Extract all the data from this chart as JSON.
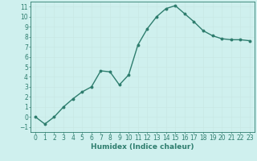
{
  "x": [
    0,
    1,
    2,
    3,
    4,
    5,
    6,
    7,
    8,
    9,
    10,
    11,
    12,
    13,
    14,
    15,
    16,
    17,
    18,
    19,
    20,
    21,
    22,
    23
  ],
  "y": [
    0,
    -0.7,
    0,
    1.0,
    1.8,
    2.5,
    3.0,
    4.6,
    4.5,
    3.2,
    4.2,
    7.2,
    8.8,
    10.0,
    10.8,
    11.1,
    10.3,
    9.5,
    8.6,
    8.1,
    7.8,
    7.7,
    7.7,
    7.6
  ],
  "line_color": "#2e7d6e",
  "marker": "o",
  "marker_size": 1.8,
  "bg_color": "#cff0ee",
  "grid_color": "#c8e8e4",
  "xlabel": "Humidex (Indice chaleur)",
  "xlim": [
    -0.5,
    23.5
  ],
  "ylim": [
    -1.5,
    11.5
  ],
  "xticks": [
    0,
    1,
    2,
    3,
    4,
    5,
    6,
    7,
    8,
    9,
    10,
    11,
    12,
    13,
    14,
    15,
    16,
    17,
    18,
    19,
    20,
    21,
    22,
    23
  ],
  "yticks": [
    -1,
    0,
    1,
    2,
    3,
    4,
    5,
    6,
    7,
    8,
    9,
    10,
    11
  ],
  "xlabel_fontsize": 6.5,
  "tick_fontsize": 5.5,
  "line_width": 1.0
}
